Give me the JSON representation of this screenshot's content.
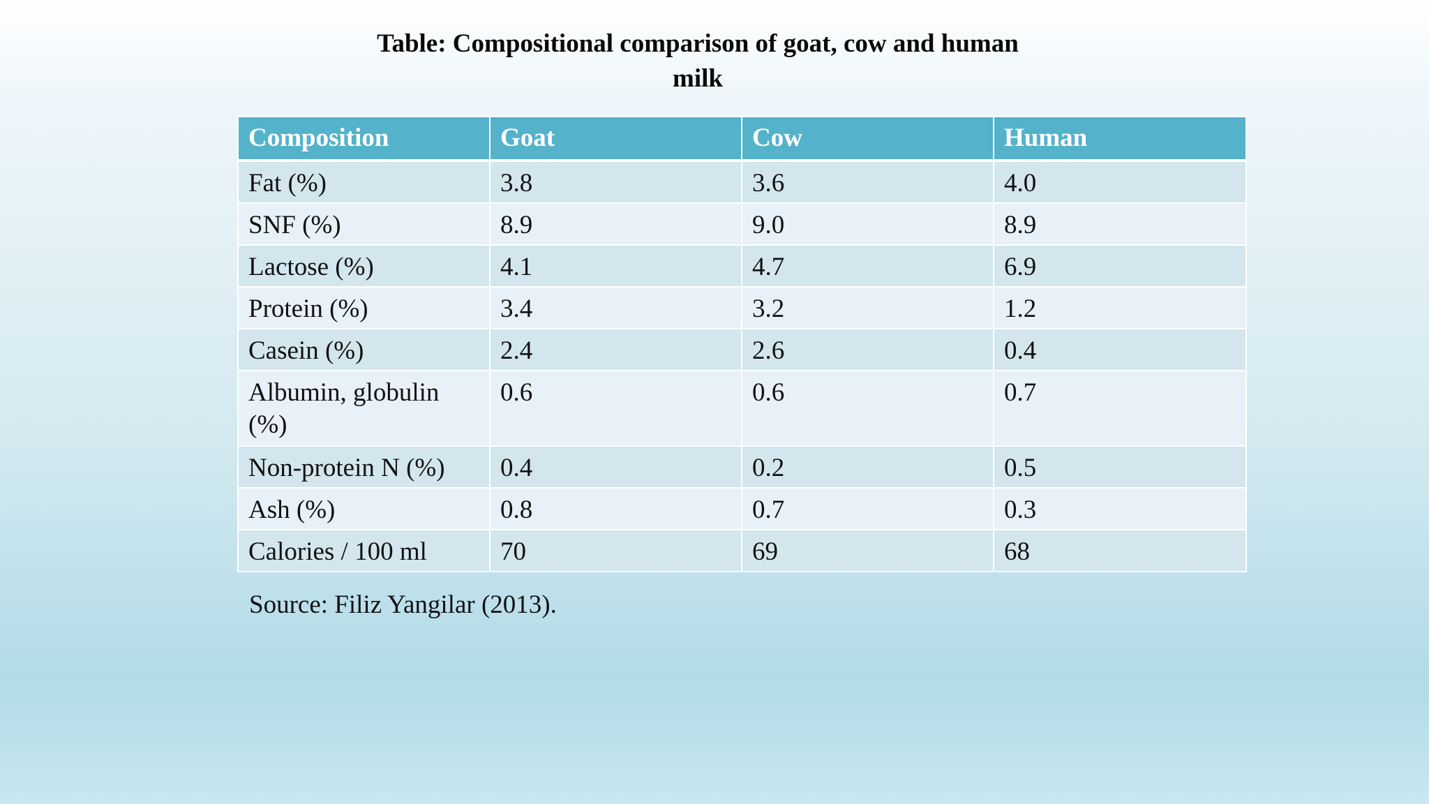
{
  "title": "Table: Compositional comparison of goat, cow and human milk",
  "table": {
    "headers": [
      "Composition",
      "Goat",
      "Cow",
      "Human"
    ],
    "rows": [
      [
        "Fat (%)",
        "3.8",
        "3.6",
        "4.0"
      ],
      [
        "SNF (%)",
        "8.9",
        "9.0",
        "8.9"
      ],
      [
        "Lactose (%)",
        "4.1",
        "4.7",
        "6.9"
      ],
      [
        "Protein (%)",
        "3.4",
        "3.2",
        "1.2"
      ],
      [
        "Casein (%)",
        "2.4",
        "2.6",
        "0.4"
      ],
      [
        "Albumin, globulin (%)",
        "0.6",
        "0.6",
        "0.7"
      ],
      [
        "Non-protein N (%)",
        "0.4",
        "0.2",
        "0.5"
      ],
      [
        "Ash (%)",
        "0.8",
        "0.7",
        "0.3"
      ],
      [
        "Calories / 100 ml",
        "70",
        "69",
        "68"
      ]
    ]
  },
  "source": "Source: Filiz Yangilar (2013).",
  "colors": {
    "header_bg": "#55b2cb",
    "row_odd": "#d3e6ee",
    "row_even": "#e8f1f7"
  }
}
